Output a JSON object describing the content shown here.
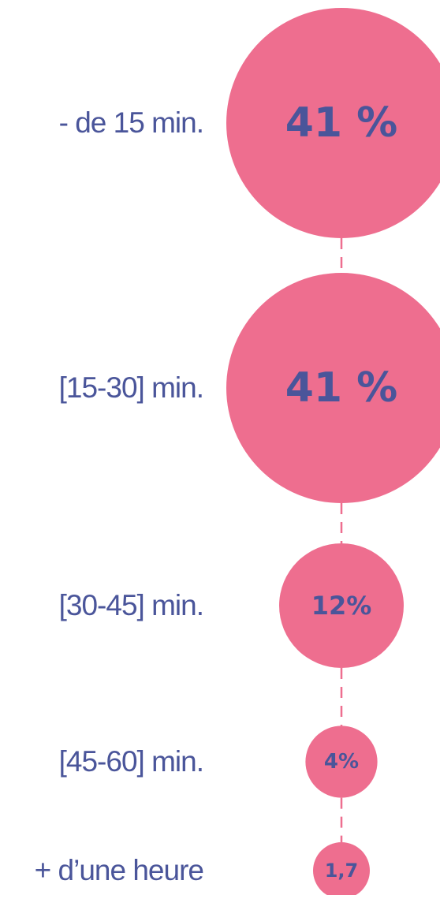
{
  "chart_data": {
    "type": "bubble",
    "categories": [
      "- de 15 min.",
      "[15-30] min.",
      "[30-45] min.",
      "[45-60] min.",
      "+ d’une heure"
    ],
    "values": [
      41,
      41,
      12,
      4,
      1.7
    ],
    "value_labels": [
      "41 %",
      "41 %",
      "12%",
      "4%",
      "1,7"
    ],
    "colors": {
      "bubble": "#ee6e8f",
      "connector": "#ee6e8f",
      "text": "#4a559a"
    }
  }
}
